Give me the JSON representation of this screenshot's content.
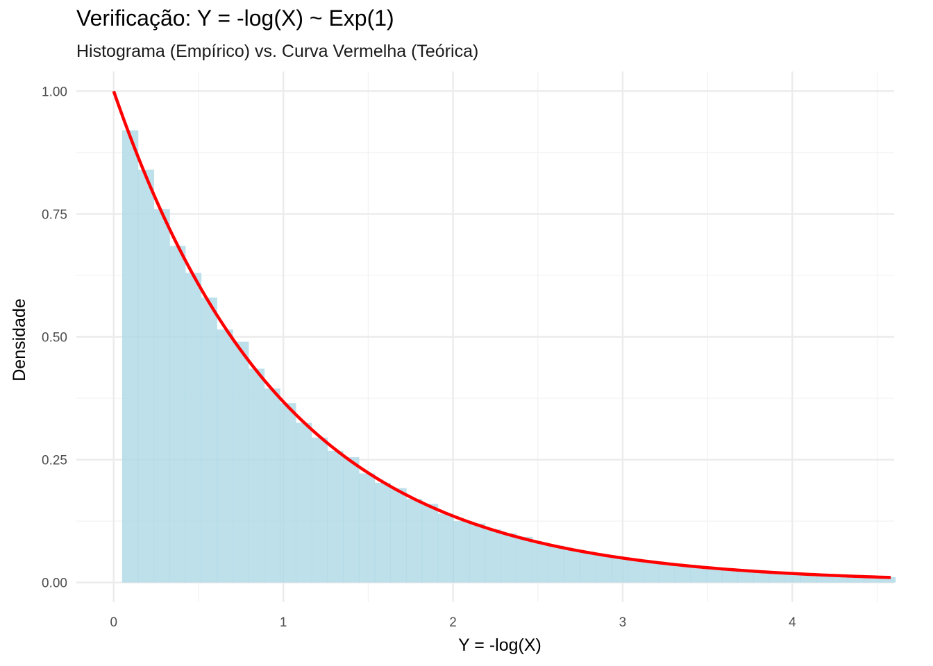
{
  "chart_data": {
    "type": "bar",
    "title": "Verificação: Y = -log(X) ~ Exp(1)",
    "subtitle": "Histograma (Empírico) vs. Curva Vermelha (Teórica)",
    "xlabel": "Y = -log(X)",
    "ylabel": "Densidade",
    "xlim": [
      -0.22,
      4.6
    ],
    "ylim": [
      -0.04,
      1.04
    ],
    "x_ticks": [
      {
        "value": 0,
        "label": "0"
      },
      {
        "value": 1,
        "label": "1"
      },
      {
        "value": 2,
        "label": "2"
      },
      {
        "value": 3,
        "label": "3"
      },
      {
        "value": 4,
        "label": "4"
      }
    ],
    "y_ticks": [
      {
        "value": 0,
        "label": "0.00"
      },
      {
        "value": 0.25,
        "label": "0.25"
      },
      {
        "value": 0.5,
        "label": "0.50"
      },
      {
        "value": 0.75,
        "label": "0.75"
      },
      {
        "value": 1,
        "label": "1.00"
      }
    ],
    "grid": true,
    "histogram": {
      "color": "#ADD8E6",
      "opacity": 0.8,
      "bin_start": 0.05,
      "bin_width": 0.093,
      "values": [
        0.92,
        0.84,
        0.76,
        0.685,
        0.63,
        0.58,
        0.515,
        0.49,
        0.435,
        0.395,
        0.365,
        0.325,
        0.295,
        0.268,
        0.255,
        0.222,
        0.203,
        0.192,
        0.17,
        0.16,
        0.14,
        0.125,
        0.12,
        0.108,
        0.1,
        0.093,
        0.08,
        0.075,
        0.068,
        0.062,
        0.055,
        0.05,
        0.045,
        0.042,
        0.04,
        0.036,
        0.032,
        0.03,
        0.027,
        0.025,
        0.022,
        0.021,
        0.019,
        0.018,
        0.016,
        0.015,
        0.013,
        0.013,
        0.011
      ]
    },
    "curve": {
      "name": "Curva Vermelha (Teórica)",
      "color": "#FF0000",
      "x_start": 0,
      "x_end": 4.58,
      "rate": 1
    }
  }
}
